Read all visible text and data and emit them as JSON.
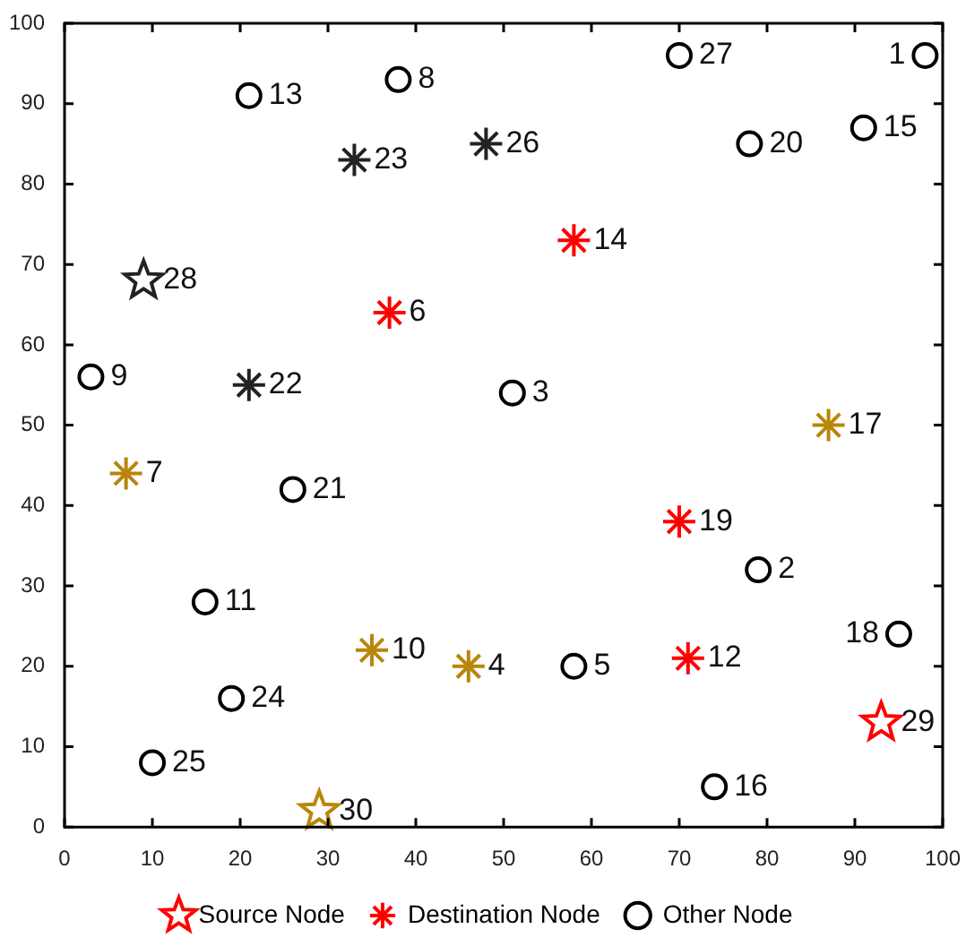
{
  "chart_data": {
    "type": "scatter",
    "xlim": [
      0,
      100
    ],
    "ylim": [
      0,
      100
    ],
    "xticks": [
      0,
      10,
      20,
      30,
      40,
      50,
      60,
      70,
      80,
      90,
      100
    ],
    "yticks": [
      0,
      10,
      20,
      30,
      40,
      50,
      60,
      70,
      80,
      90,
      100
    ],
    "grid": false,
    "legend": "bottom",
    "series": [
      {
        "name": "Source Node",
        "color": "#ff0000",
        "marker": "star",
        "x": [
          93
        ],
        "values": [
          13
        ]
      },
      {
        "name": "Destination Node",
        "color": "#ff0000",
        "marker": "cross",
        "x": [
          58,
          37,
          70,
          71
        ],
        "values": [
          73,
          64,
          38,
          21
        ]
      },
      {
        "name": "Other Node",
        "color": "#000000",
        "marker": "circle",
        "x": [
          98,
          91,
          78,
          70,
          21,
          38,
          3,
          51,
          26,
          16,
          19,
          10,
          58,
          79,
          95,
          74
        ],
        "values": [
          96,
          87,
          85,
          96,
          91,
          93,
          56,
          54,
          42,
          28,
          16,
          8,
          20,
          32,
          24,
          5
        ]
      },
      {
        "color": "#222222",
        "marker": "cross",
        "x": [
          33,
          48,
          21
        ],
        "values": [
          83,
          85,
          55
        ]
      },
      {
        "color": "#222222",
        "marker": "star",
        "x": [
          9
        ],
        "values": [
          68
        ]
      },
      {
        "color": "#b8860b",
        "marker": "cross",
        "x": [
          7,
          87,
          35,
          46
        ],
        "values": [
          44,
          50,
          22,
          20
        ]
      },
      {
        "color": "#b8860b",
        "marker": "star",
        "x": [
          29
        ],
        "values": [
          2
        ]
      }
    ],
    "annotations": [
      {
        "text": "1",
        "x": 98,
        "y": 96
      },
      {
        "text": "2",
        "x": 79,
        "y": 32
      },
      {
        "text": "3",
        "x": 51,
        "y": 54
      },
      {
        "text": "4",
        "x": 46,
        "y": 20
      },
      {
        "text": "5",
        "x": 58,
        "y": 20
      },
      {
        "text": "6",
        "x": 37,
        "y": 64
      },
      {
        "text": "7",
        "x": 7,
        "y": 44
      },
      {
        "text": "8",
        "x": 38,
        "y": 93
      },
      {
        "text": "9",
        "x": 3,
        "y": 56
      },
      {
        "text": "10",
        "x": 35,
        "y": 22
      },
      {
        "text": "11",
        "x": 16,
        "y": 28
      },
      {
        "text": "12",
        "x": 71,
        "y": 21
      },
      {
        "text": "13",
        "x": 21,
        "y": 91
      },
      {
        "text": "14",
        "x": 58,
        "y": 73
      },
      {
        "text": "15",
        "x": 91,
        "y": 87
      },
      {
        "text": "16",
        "x": 74,
        "y": 5
      },
      {
        "text": "17",
        "x": 87,
        "y": 50
      },
      {
        "text": "18",
        "x": 95,
        "y": 24
      },
      {
        "text": "19",
        "x": 70,
        "y": 38
      },
      {
        "text": "20",
        "x": 78,
        "y": 85
      },
      {
        "text": "21",
        "x": 26,
        "y": 42
      },
      {
        "text": "22",
        "x": 21,
        "y": 55
      },
      {
        "text": "23",
        "x": 33,
        "y": 83
      },
      {
        "text": "24",
        "x": 19,
        "y": 16
      },
      {
        "text": "25",
        "x": 10,
        "y": 8
      },
      {
        "text": "26",
        "x": 48,
        "y": 85
      },
      {
        "text": "27",
        "x": 70,
        "y": 96
      },
      {
        "text": "28",
        "x": 9,
        "y": 68
      },
      {
        "text": "29",
        "x": 93,
        "y": 13
      },
      {
        "text": "30",
        "x": 29,
        "y": 2
      }
    ]
  }
}
